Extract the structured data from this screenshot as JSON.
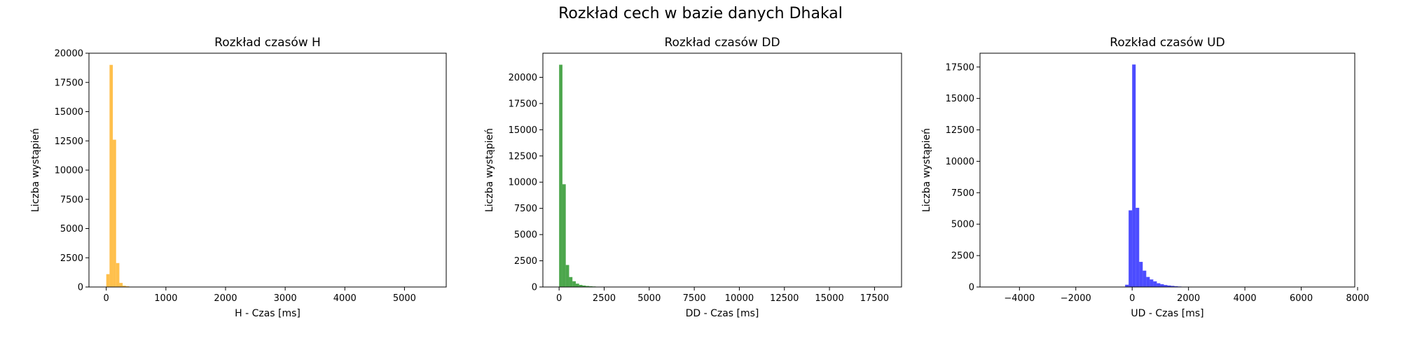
{
  "figure": {
    "suptitle": "Rozkład cech w bazie danych Dhakal"
  },
  "chart_data": [
    {
      "type": "bar",
      "title": "Rozkład czasów H",
      "xlabel": "H - Czas [ms]",
      "ylabel": "Liczba wystąpień",
      "color": "#FFA500",
      "xlim": [
        -290,
        5700
      ],
      "ylim": [
        0,
        20000
      ],
      "xticks": [
        0,
        1000,
        2000,
        3000,
        4000,
        5000
      ],
      "xtick_labels": [
        "0",
        "1000",
        "2000",
        "3000",
        "4000",
        "5000"
      ],
      "yticks": [
        0,
        2500,
        5000,
        7500,
        10000,
        12500,
        15000,
        17500,
        20000
      ],
      "ytick_labels": [
        "0",
        "2500",
        "5000",
        "7500",
        "10000",
        "12500",
        "15000",
        "17500",
        "20000"
      ],
      "bins": [
        {
          "x0": 0,
          "x1": 55,
          "value": 1100
        },
        {
          "x0": 55,
          "x1": 110,
          "value": 19000
        },
        {
          "x0": 110,
          "x1": 165,
          "value": 12600
        },
        {
          "x0": 165,
          "x1": 220,
          "value": 2050
        },
        {
          "x0": 220,
          "x1": 275,
          "value": 350
        },
        {
          "x0": 275,
          "x1": 330,
          "value": 110
        },
        {
          "x0": 330,
          "x1": 385,
          "value": 60
        },
        {
          "x0": 385,
          "x1": 440,
          "value": 30
        },
        {
          "x0": 440,
          "x1": 495,
          "value": 15
        }
      ]
    },
    {
      "type": "bar",
      "title": "Rozkład czasów DD",
      "xlabel": "DD - Czas [ms]",
      "ylabel": "Liczba wystąpień",
      "color": "#008000",
      "xlim": [
        -900,
        19000
      ],
      "ylim": [
        0,
        22300
      ],
      "xticks": [
        0,
        2500,
        5000,
        7500,
        10000,
        12500,
        15000,
        17500
      ],
      "xtick_labels": [
        "0",
        "2500",
        "5000",
        "7500",
        "10000",
        "12500",
        "15000",
        "17500"
      ],
      "yticks": [
        0,
        2500,
        5000,
        7500,
        10000,
        12500,
        15000,
        17500,
        20000
      ],
      "ytick_labels": [
        "0",
        "2500",
        "5000",
        "7500",
        "10000",
        "12500",
        "15000",
        "17500",
        "20000"
      ],
      "bins": [
        {
          "x0": 0,
          "x1": 185,
          "value": 21200
        },
        {
          "x0": 185,
          "x1": 370,
          "value": 9800
        },
        {
          "x0": 370,
          "x1": 555,
          "value": 2100
        },
        {
          "x0": 555,
          "x1": 740,
          "value": 950
        },
        {
          "x0": 740,
          "x1": 925,
          "value": 550
        },
        {
          "x0": 925,
          "x1": 1110,
          "value": 320
        },
        {
          "x0": 1110,
          "x1": 1295,
          "value": 200
        },
        {
          "x0": 1295,
          "x1": 1480,
          "value": 140
        },
        {
          "x0": 1480,
          "x1": 1665,
          "value": 100
        },
        {
          "x0": 1665,
          "x1": 1850,
          "value": 70
        },
        {
          "x0": 1850,
          "x1": 2035,
          "value": 50
        },
        {
          "x0": 2035,
          "x1": 2220,
          "value": 30
        },
        {
          "x0": 2220,
          "x1": 2405,
          "value": 15
        }
      ]
    },
    {
      "type": "bar",
      "title": "Rozkład czasów UD",
      "xlabel": "UD - Czas [ms]",
      "ylabel": "Liczba wystąpień",
      "color": "#0000FF",
      "xlim": [
        -5400,
        7900
      ],
      "ylim": [
        0,
        18600
      ],
      "xticks": [
        -4000,
        -2000,
        0,
        2000,
        4000,
        6000,
        8000
      ],
      "xtick_labels": [
        "−4000",
        "−2000",
        "0",
        "2000",
        "4000",
        "6000",
        "8000"
      ],
      "yticks": [
        0,
        2500,
        5000,
        7500,
        10000,
        12500,
        15000,
        17500
      ],
      "ytick_labels": [
        "0",
        "2500",
        "5000",
        "7500",
        "10000",
        "12500",
        "15000",
        "17500"
      ],
      "bins": [
        {
          "x0": -250,
          "x1": -125,
          "value": 180
        },
        {
          "x0": -125,
          "x1": 0,
          "value": 6100
        },
        {
          "x0": 0,
          "x1": 125,
          "value": 17700
        },
        {
          "x0": 125,
          "x1": 250,
          "value": 6300
        },
        {
          "x0": 250,
          "x1": 375,
          "value": 2000
        },
        {
          "x0": 375,
          "x1": 500,
          "value": 1300
        },
        {
          "x0": 500,
          "x1": 625,
          "value": 800
        },
        {
          "x0": 625,
          "x1": 750,
          "value": 600
        },
        {
          "x0": 750,
          "x1": 875,
          "value": 450
        },
        {
          "x0": 875,
          "x1": 1000,
          "value": 300
        },
        {
          "x0": 1000,
          "x1": 1125,
          "value": 220
        },
        {
          "x0": 1125,
          "x1": 1250,
          "value": 160
        },
        {
          "x0": 1250,
          "x1": 1375,
          "value": 120
        },
        {
          "x0": 1375,
          "x1": 1500,
          "value": 90
        },
        {
          "x0": 1500,
          "x1": 1625,
          "value": 60
        },
        {
          "x0": 1625,
          "x1": 1750,
          "value": 40
        },
        {
          "x0": 1750,
          "x1": 1875,
          "value": 20
        }
      ]
    }
  ]
}
